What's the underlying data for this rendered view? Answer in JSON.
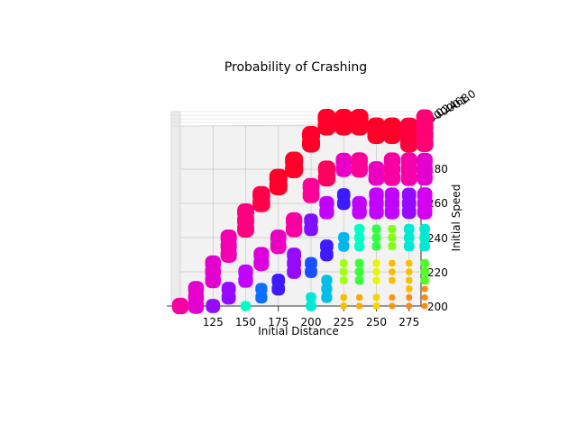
{
  "chart_data": {
    "type": "scatter3d",
    "title": "Probability of Crashing",
    "xlabel": "Initial Distance",
    "ylabel": "Initial Speed",
    "zlabel": "",
    "x_ticks": [
      "125",
      "150",
      "175",
      "200",
      "225",
      "250",
      "275"
    ],
    "y_ticks": [
      "200",
      "220",
      "240",
      "260",
      "180"
    ],
    "z_ticks": [
      "0.0",
      "0.2",
      "0.4",
      "0.6",
      "0.8",
      "1.0"
    ],
    "colormap": "gist_rainbow",
    "grid": true,
    "columns": [
      {
        "distance": 100,
        "points": [
          {
            "speed": 200,
            "prob": 0.88
          }
        ]
      },
      {
        "distance": 112,
        "points": [
          {
            "speed": 200,
            "prob": 0.82
          },
          {
            "speed": 205,
            "prob": 0.82
          },
          {
            "speed": 210,
            "prob": 0.82
          }
        ]
      },
      {
        "distance": 125,
        "points": [
          {
            "speed": 200,
            "prob": 0.7
          },
          {
            "speed": 215,
            "prob": 0.82
          },
          {
            "speed": 220,
            "prob": 0.82
          },
          {
            "speed": 225,
            "prob": 0.82
          }
        ]
      },
      {
        "distance": 137,
        "points": [
          {
            "speed": 205,
            "prob": 0.7
          },
          {
            "speed": 210,
            "prob": 0.7
          },
          {
            "speed": 230,
            "prob": 0.86
          },
          {
            "speed": 235,
            "prob": 0.86
          },
          {
            "speed": 240,
            "prob": 0.86
          }
        ]
      },
      {
        "distance": 150,
        "points": [
          {
            "speed": 200,
            "prob": 0.38
          },
          {
            "speed": 215,
            "prob": 0.74
          },
          {
            "speed": 220,
            "prob": 0.74
          },
          {
            "speed": 245,
            "prob": 0.92
          },
          {
            "speed": 250,
            "prob": 0.92
          },
          {
            "speed": 255,
            "prob": 0.92
          }
        ]
      },
      {
        "distance": 162,
        "points": [
          {
            "speed": 205,
            "prob": 0.52
          },
          {
            "speed": 210,
            "prob": 0.52
          },
          {
            "speed": 225,
            "prob": 0.8
          },
          {
            "speed": 230,
            "prob": 0.8
          },
          {
            "speed": 260,
            "prob": 0.97
          },
          {
            "speed": 265,
            "prob": 0.97
          }
        ]
      },
      {
        "distance": 175,
        "points": [
          {
            "speed": 210,
            "prob": 0.62
          },
          {
            "speed": 215,
            "prob": 0.62
          },
          {
            "speed": 235,
            "prob": 0.84
          },
          {
            "speed": 240,
            "prob": 0.84
          },
          {
            "speed": 270,
            "prob": 1.0
          },
          {
            "speed": 275,
            "prob": 1.0
          }
        ]
      },
      {
        "distance": 187,
        "points": [
          {
            "speed": 220,
            "prob": 0.7
          },
          {
            "speed": 225,
            "prob": 0.7
          },
          {
            "speed": 230,
            "prob": 0.7
          },
          {
            "speed": 245,
            "prob": 0.88
          },
          {
            "speed": 250,
            "prob": 0.88
          },
          {
            "speed": 280,
            "prob": 1.0
          },
          {
            "speed": 285,
            "prob": 1.0
          }
        ]
      },
      {
        "distance": 200,
        "points": [
          {
            "speed": 200,
            "prob": 0.4
          },
          {
            "speed": 205,
            "prob": 0.4
          },
          {
            "speed": 220,
            "prob": 0.55
          },
          {
            "speed": 225,
            "prob": 0.55
          },
          {
            "speed": 245,
            "prob": 0.68
          },
          {
            "speed": 250,
            "prob": 0.68
          },
          {
            "speed": 265,
            "prob": 0.9
          },
          {
            "speed": 270,
            "prob": 0.9
          },
          {
            "speed": 295,
            "prob": 1.0
          },
          {
            "speed": 300,
            "prob": 1.0
          }
        ]
      },
      {
        "distance": 212,
        "points": [
          {
            "speed": 205,
            "prob": 0.44
          },
          {
            "speed": 210,
            "prob": 0.44
          },
          {
            "speed": 215,
            "prob": 0.44
          },
          {
            "speed": 230,
            "prob": 0.62
          },
          {
            "speed": 235,
            "prob": 0.62
          },
          {
            "speed": 255,
            "prob": 0.74
          },
          {
            "speed": 260,
            "prob": 0.74
          },
          {
            "speed": 275,
            "prob": 0.95
          },
          {
            "speed": 280,
            "prob": 0.95
          },
          {
            "speed": 305,
            "prob": 1.0
          },
          {
            "speed": 310,
            "prob": 1.0
          }
        ]
      },
      {
        "distance": 225,
        "points": [
          {
            "speed": 200,
            "prob": 0.1
          },
          {
            "speed": 205,
            "prob": 0.1
          },
          {
            "speed": 215,
            "prob": 0.2
          },
          {
            "speed": 220,
            "prob": 0.2
          },
          {
            "speed": 225,
            "prob": 0.2
          },
          {
            "speed": 235,
            "prob": 0.45
          },
          {
            "speed": 240,
            "prob": 0.45
          },
          {
            "speed": 260,
            "prob": 0.62
          },
          {
            "speed": 265,
            "prob": 0.62
          },
          {
            "speed": 280,
            "prob": 0.83
          },
          {
            "speed": 285,
            "prob": 0.83
          },
          {
            "speed": 305,
            "prob": 1.0
          },
          {
            "speed": 310,
            "prob": 1.0
          }
        ]
      },
      {
        "distance": 237,
        "points": [
          {
            "speed": 200,
            "prob": 0.08
          },
          {
            "speed": 205,
            "prob": 0.08
          },
          {
            "speed": 215,
            "prob": 0.27
          },
          {
            "speed": 220,
            "prob": 0.27
          },
          {
            "speed": 225,
            "prob": 0.27
          },
          {
            "speed": 235,
            "prob": 0.38
          },
          {
            "speed": 240,
            "prob": 0.38
          },
          {
            "speed": 245,
            "prob": 0.38
          },
          {
            "speed": 255,
            "prob": 0.74
          },
          {
            "speed": 260,
            "prob": 0.74
          },
          {
            "speed": 280,
            "prob": 0.9
          },
          {
            "speed": 285,
            "prob": 0.9
          },
          {
            "speed": 305,
            "prob": 1.0
          },
          {
            "speed": 310,
            "prob": 1.0
          }
        ]
      },
      {
        "distance": 250,
        "points": [
          {
            "speed": 200,
            "prob": 0.12
          },
          {
            "speed": 205,
            "prob": 0.12
          },
          {
            "speed": 215,
            "prob": 0.15
          },
          {
            "speed": 220,
            "prob": 0.15
          },
          {
            "speed": 225,
            "prob": 0.15
          },
          {
            "speed": 235,
            "prob": 0.28
          },
          {
            "speed": 240,
            "prob": 0.28
          },
          {
            "speed": 245,
            "prob": 0.28
          },
          {
            "speed": 255,
            "prob": 0.74
          },
          {
            "speed": 260,
            "prob": 0.74
          },
          {
            "speed": 265,
            "prob": 0.74
          },
          {
            "speed": 275,
            "prob": 0.84
          },
          {
            "speed": 280,
            "prob": 0.84
          },
          {
            "speed": 300,
            "prob": 1.0
          },
          {
            "speed": 305,
            "prob": 1.0
          }
        ]
      },
      {
        "distance": 262,
        "points": [
          {
            "speed": 200,
            "prob": 0.06
          },
          {
            "speed": 205,
            "prob": 0.06
          },
          {
            "speed": 215,
            "prob": 0.1
          },
          {
            "speed": 220,
            "prob": 0.1
          },
          {
            "speed": 225,
            "prob": 0.1
          },
          {
            "speed": 235,
            "prob": 0.22
          },
          {
            "speed": 240,
            "prob": 0.22
          },
          {
            "speed": 245,
            "prob": 0.22
          },
          {
            "speed": 255,
            "prob": 0.74
          },
          {
            "speed": 260,
            "prob": 0.74
          },
          {
            "speed": 265,
            "prob": 0.74
          },
          {
            "speed": 275,
            "prob": 0.88
          },
          {
            "speed": 280,
            "prob": 0.88
          },
          {
            "speed": 285,
            "prob": 0.88
          },
          {
            "speed": 300,
            "prob": 1.0
          },
          {
            "speed": 305,
            "prob": 1.0
          }
        ]
      },
      {
        "distance": 275,
        "points": [
          {
            "speed": 200,
            "prob": 0.05
          },
          {
            "speed": 205,
            "prob": 0.05
          },
          {
            "speed": 210,
            "prob": 0.1
          },
          {
            "speed": 215,
            "prob": 0.1
          },
          {
            "speed": 220,
            "prob": 0.1
          },
          {
            "speed": 225,
            "prob": 0.1
          },
          {
            "speed": 235,
            "prob": 0.4
          },
          {
            "speed": 240,
            "prob": 0.4
          },
          {
            "speed": 245,
            "prob": 0.4
          },
          {
            "speed": 255,
            "prob": 0.7
          },
          {
            "speed": 260,
            "prob": 0.7
          },
          {
            "speed": 265,
            "prob": 0.7
          },
          {
            "speed": 275,
            "prob": 0.87
          },
          {
            "speed": 280,
            "prob": 0.87
          },
          {
            "speed": 285,
            "prob": 0.87
          },
          {
            "speed": 295,
            "prob": 0.98
          },
          {
            "speed": 300,
            "prob": 0.98
          },
          {
            "speed": 305,
            "prob": 0.98
          }
        ]
      },
      {
        "distance": 287,
        "points": [
          {
            "speed": 200,
            "prob": 0.05
          },
          {
            "speed": 205,
            "prob": 0.05
          },
          {
            "speed": 210,
            "prob": 0.05
          },
          {
            "speed": 215,
            "prob": 0.25
          },
          {
            "speed": 220,
            "prob": 0.25
          },
          {
            "speed": 225,
            "prob": 0.25
          },
          {
            "speed": 235,
            "prob": 0.4
          },
          {
            "speed": 240,
            "prob": 0.4
          },
          {
            "speed": 245,
            "prob": 0.4
          },
          {
            "speed": 255,
            "prob": 0.77
          },
          {
            "speed": 260,
            "prob": 0.77
          },
          {
            "speed": 265,
            "prob": 0.77
          },
          {
            "speed": 275,
            "prob": 0.82
          },
          {
            "speed": 280,
            "prob": 0.82
          },
          {
            "speed": 285,
            "prob": 0.82
          },
          {
            "speed": 295,
            "prob": 0.93
          },
          {
            "speed": 300,
            "prob": 0.93
          },
          {
            "speed": 305,
            "prob": 0.93
          },
          {
            "speed": 310,
            "prob": 0.93
          }
        ]
      }
    ]
  }
}
